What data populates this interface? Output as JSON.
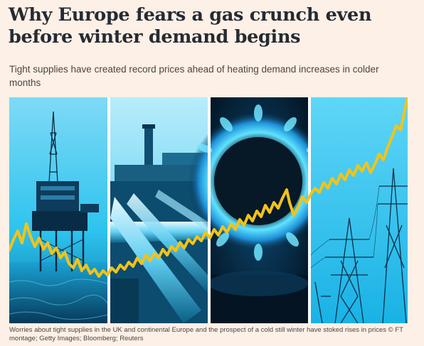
{
  "article": {
    "headline": "Why Europe fears a gas crunch even before winter demand begins",
    "standfirst": "Tight supplies have created record prices ahead of heating demand increases in colder months",
    "caption": "Worries about tight supplies in the UK and continental Europe and the prospect of a cold still winter have stoked rises in prices © FT montage; Getty Images; Bloomberg; Reuters"
  },
  "montage": {
    "panels": [
      "oil-rig",
      "pipeline",
      "gas-flame",
      "pylons"
    ],
    "colors": {
      "cyan": "#19b9e6",
      "deep": "#0a3a55",
      "line": "#f2c318"
    }
  }
}
